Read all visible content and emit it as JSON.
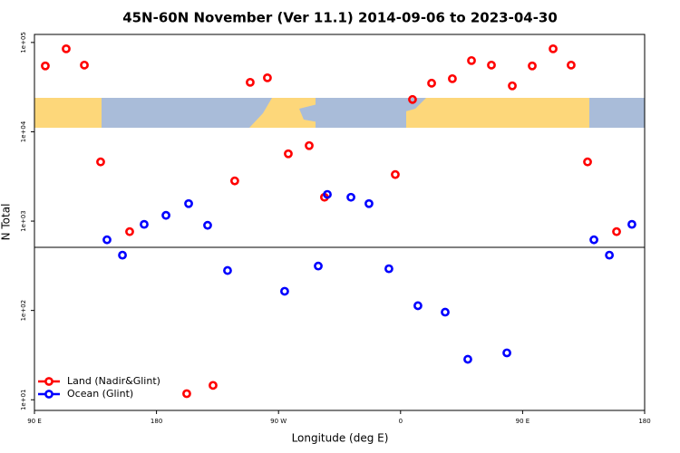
{
  "chart_data": {
    "type": "scatter",
    "title": "45N-60N November (Ver 11.1)   2014-09-06 to 2023-04-30",
    "x_label": "Longitude (deg E)",
    "y_label": "N Total",
    "xlim": [
      90,
      540
    ],
    "xticks": [
      {
        "value": 90,
        "label": "90 E"
      },
      {
        "value": 180,
        "label": "180"
      },
      {
        "value": 270,
        "label": "90 W"
      },
      {
        "value": 360,
        "label": "0"
      },
      {
        "value": 450,
        "label": "90 E"
      },
      {
        "value": 540,
        "label": "180"
      }
    ],
    "ylim": [
      7.6,
      123000
    ],
    "log_y": true,
    "yticks": [
      {
        "value": 10,
        "label": "1e+01"
      },
      {
        "value": 100,
        "label": "1e+02"
      },
      {
        "value": 1000,
        "label": "1e+03"
      },
      {
        "value": 10000,
        "label": "1e+04"
      },
      {
        "value": 100000,
        "label": "1e+05"
      }
    ],
    "hline": 508,
    "legend": "bottom-left",
    "series": [
      {
        "name": "Land (Nadir&Glint)",
        "color": "#ff0000",
        "x": [
          98.0,
          113.4,
          126.8,
          138.8,
          160.2,
          202.3,
          221.7,
          237.7,
          249.1,
          261.8,
          277.2,
          292.6,
          303.9,
          356.1,
          368.8,
          382.9,
          398.2,
          412.3,
          427.0,
          442.4,
          457.1,
          472.5,
          485.8,
          497.9,
          519.3
        ],
        "values": [
          54600,
          84900,
          55800,
          4600,
          762,
          11.7,
          14.5,
          2820,
          35800,
          40200,
          5670,
          7000,
          1850,
          3320,
          23000,
          35000,
          39300,
          62700,
          55800,
          32700,
          54600,
          84900,
          55800,
          4600,
          762
        ]
      },
      {
        "name": "Ocean (Glint)",
        "color": "#0000ff",
        "x": [
          143.5,
          154.9,
          170.9,
          187.0,
          203.7,
          217.7,
          232.4,
          274.5,
          299.3,
          306.0,
          323.4,
          336.7,
          351.4,
          372.8,
          392.9,
          409.6,
          438.4,
          502.6,
          514.0,
          530.6
        ],
        "values": [
          618,
          416,
          920,
          1160,
          1570,
          898,
          280,
          164,
          314,
          1990,
          1850,
          1570,
          293,
          113,
          95.7,
          28.4,
          33.5,
          618,
          416,
          920
        ]
      }
    ]
  }
}
